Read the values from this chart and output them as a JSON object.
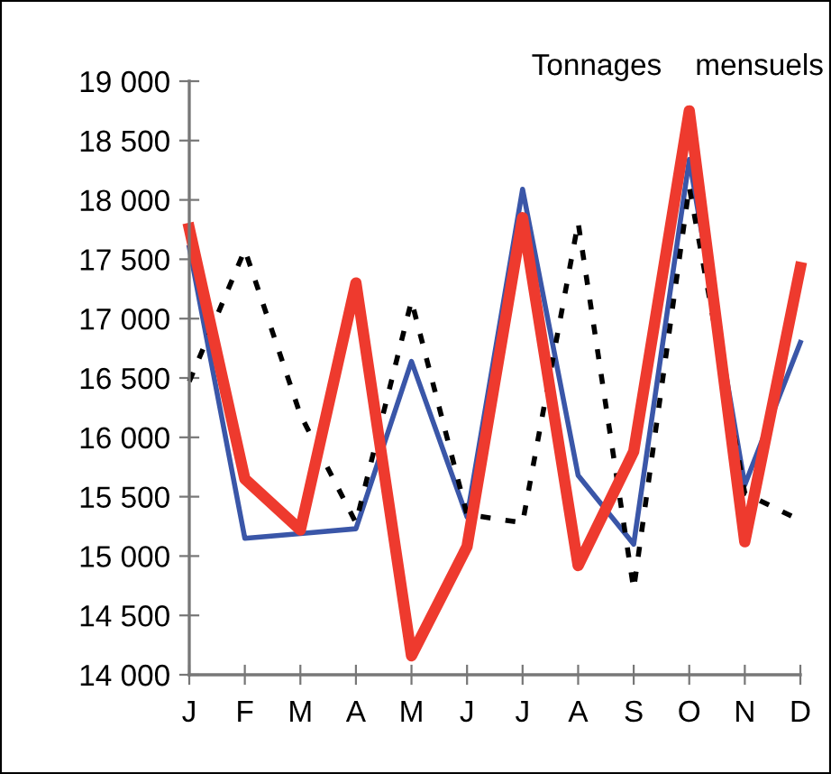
{
  "chart_data": {
    "type": "line",
    "title": "Tonnages    mensuels",
    "categories": [
      "J",
      "F",
      "M",
      "A",
      "M",
      "J",
      "J",
      "A",
      "S",
      "O",
      "N",
      "D"
    ],
    "series": [
      {
        "color": "#3a56a8",
        "values": [
          17600,
          15150,
          15190,
          15230,
          16640,
          15330,
          18090,
          15680,
          15100,
          18340,
          15600,
          16800
        ]
      },
      {
        "color": "#000000",
        "line_style": "dotted",
        "values": [
          16470,
          17580,
          16190,
          15280,
          17150,
          15350,
          15280,
          17810,
          14720,
          18110,
          15530,
          15300
        ]
      },
      {
        "color": "#ee3a2e",
        "values": [
          17760,
          15650,
          15220,
          17300,
          14160,
          15080,
          17850,
          14920,
          15880,
          18750,
          15120,
          17430
        ]
      }
    ],
    "ylim": [
      14000,
      19000
    ],
    "yticks": [
      {
        "value": 14000,
        "label": "14 000"
      },
      {
        "value": 14500,
        "label": "14 500"
      },
      {
        "value": 15000,
        "label": "15 000"
      },
      {
        "value": 15500,
        "label": "15 500"
      },
      {
        "value": 16000,
        "label": "16 000"
      },
      {
        "value": 16500,
        "label": "16 500"
      },
      {
        "value": 17000,
        "label": "17 000"
      },
      {
        "value": 17500,
        "label": "17 500"
      },
      {
        "value": 18000,
        "label": "18 000"
      },
      {
        "value": 18500,
        "label": "18 500"
      },
      {
        "value": 19000,
        "label": "19 000"
      }
    ],
    "grid": false,
    "legend": false,
    "marker": "none"
  }
}
